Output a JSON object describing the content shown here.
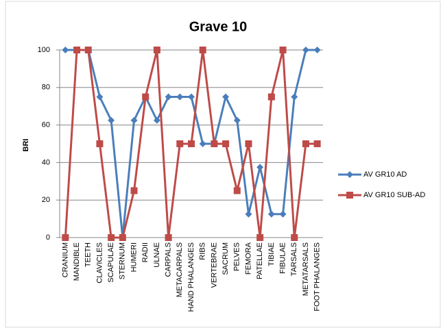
{
  "chart_data": {
    "type": "line",
    "title": "Grave 10",
    "y_label": "BRI",
    "categories": [
      "CRANIUM",
      "MANDIBLE",
      "TEETH",
      "CLAVICLES",
      "SCAPULAE",
      "STERNUM",
      "HUMERI",
      "RADII",
      "ULNAE",
      "CARPALS",
      "METACARPALS",
      "HAND PHALANGES",
      "RIBS",
      "VERTEBRAE",
      "SACRUM",
      "PELVES",
      "FEMORA",
      "PATELLAE",
      "TIBIAE",
      "FIBULAE",
      "TARSALS",
      "METATARSALS",
      "FOOT PHALANGES"
    ],
    "series": [
      {
        "name": "AV GR10 AD",
        "color": "#4a7ebb",
        "marker": "diamond",
        "values": [
          100,
          100,
          100,
          75,
          62.5,
          0,
          62.5,
          75,
          62.5,
          75,
          75,
          75,
          50,
          50,
          75,
          62.5,
          12.5,
          37.5,
          12.5,
          12.5,
          75,
          100,
          100
        ]
      },
      {
        "name": "AV GR10 SUB-AD",
        "color": "#be4b48",
        "marker": "square",
        "values": [
          0,
          100,
          100,
          50,
          0,
          0,
          25,
          75,
          100,
          0,
          50,
          50,
          100,
          50,
          50,
          25,
          50,
          0,
          75,
          100,
          0,
          50,
          50
        ]
      }
    ],
    "ylim": [
      0,
      100
    ],
    "yticks": [
      0,
      20,
      40,
      60,
      80,
      100
    ],
    "grid": true,
    "legend": "right"
  }
}
